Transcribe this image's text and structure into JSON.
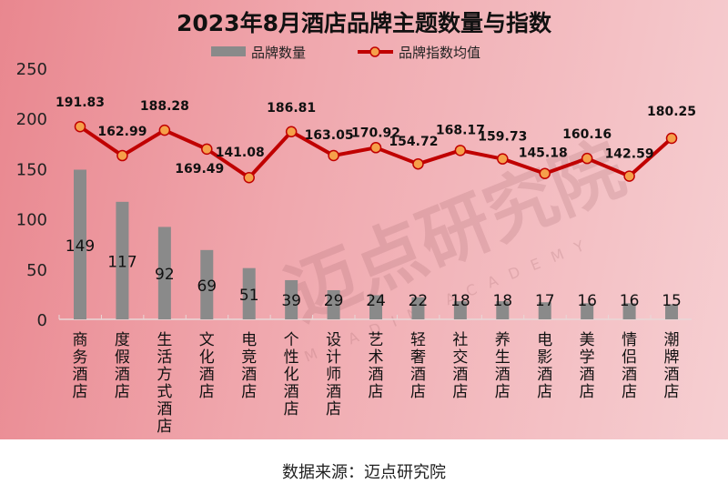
{
  "chart_data": {
    "type": "bar+line",
    "title": "2023年8月酒店品牌主题数量与指数",
    "categories": [
      "商务酒店",
      "度假酒店",
      "生活方式酒店",
      "文化酒店",
      "电竞酒店",
      "个性化酒店",
      "设计师酒店",
      "艺术酒店",
      "轻奢酒店",
      "社交酒店",
      "养生酒店",
      "电影酒店",
      "美学酒店",
      "情侣酒店",
      "潮牌酒店"
    ],
    "series": [
      {
        "name": "品牌数量",
        "type": "bar",
        "color": "#8a8a8a",
        "values": [
          149,
          117,
          92,
          69,
          51,
          39,
          29,
          24,
          22,
          18,
          18,
          17,
          16,
          16,
          15
        ]
      },
      {
        "name": "品牌指数均值",
        "type": "line",
        "color": "#c00000",
        "marker_color": "#f5a04a",
        "values": [
          191.83,
          162.99,
          188.28,
          169.49,
          141.08,
          186.81,
          163.05,
          170.92,
          154.72,
          168.17,
          159.73,
          145.18,
          160.16,
          142.59,
          180.25
        ]
      }
    ],
    "ylim": [
      0,
      250
    ],
    "yticks": [
      0,
      50,
      100,
      150,
      200,
      250
    ],
    "grid": false,
    "legend": "top"
  },
  "watermark": {
    "text": "迈点研究院",
    "subtext": "MEADIN ACADEMY"
  },
  "footer": {
    "source": "数据来源：迈点研究院"
  }
}
